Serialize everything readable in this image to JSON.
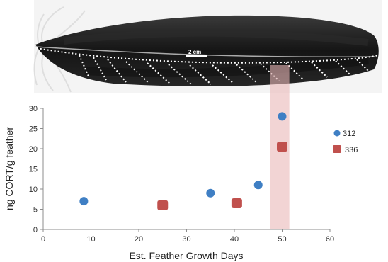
{
  "figure": {
    "scale_bar_label": "2 cm"
  },
  "colors": {
    "series_312": "#3f7fc4",
    "series_336": "#c0504d",
    "highlight_band": "#e9b7b7",
    "feather_dark": "#1a1a1a"
  },
  "chart_data": {
    "type": "scatter",
    "xlabel": "Est. Feather Growth Days",
    "ylabel": "ng CORT/g feather",
    "xlim": [
      0,
      60
    ],
    "ylim": [
      0,
      30
    ],
    "x_ticks": [
      "0",
      "10",
      "20",
      "30",
      "40",
      "50",
      "60"
    ],
    "y_ticks": [
      "0",
      "5",
      "10",
      "15",
      "20",
      "25",
      "30"
    ],
    "grid": false,
    "legend_position": "right",
    "highlight_x_range": [
      47.5,
      51.5
    ],
    "series": [
      {
        "name": "312",
        "marker": "circle",
        "points": [
          {
            "x": 8.5,
            "y": 7
          },
          {
            "x": 35,
            "y": 9
          },
          {
            "x": 45,
            "y": 11
          },
          {
            "x": 50,
            "y": 28
          }
        ]
      },
      {
        "name": "336",
        "marker": "square",
        "points": [
          {
            "x": 25,
            "y": 6
          },
          {
            "x": 40.5,
            "y": 6.5
          },
          {
            "x": 50,
            "y": 20.5
          }
        ]
      }
    ]
  }
}
